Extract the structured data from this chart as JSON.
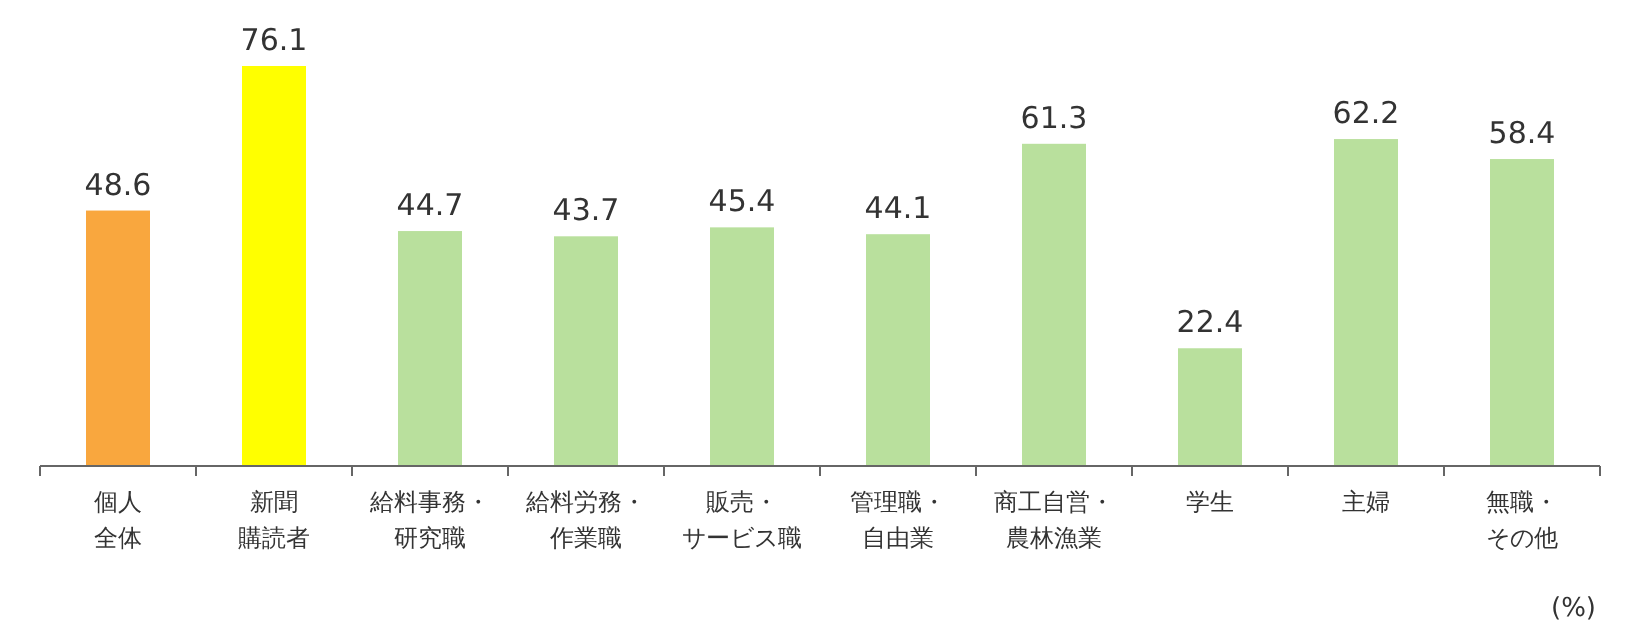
{
  "chart_data": {
    "type": "bar",
    "categories": [
      "個人全体",
      "新聞購読者",
      "給料事務・研究職",
      "給料労務・作業職",
      "販売・サービス職",
      "管理職・自由業",
      "商工自営・農林漁業",
      "学生",
      "主婦",
      "無職・その他"
    ],
    "values": [
      48.6,
      76.1,
      44.7,
      43.7,
      45.4,
      44.1,
      61.3,
      22.4,
      62.2,
      58.4
    ],
    "colors": [
      "#f9a73e",
      "#ffff00",
      "#b9e09d",
      "#b9e09d",
      "#b9e09d",
      "#b9e09d",
      "#b9e09d",
      "#b9e09d",
      "#b9e09d",
      "#b9e09d"
    ],
    "data_labels": true,
    "annotations": [
      "(%)"
    ]
  }
}
